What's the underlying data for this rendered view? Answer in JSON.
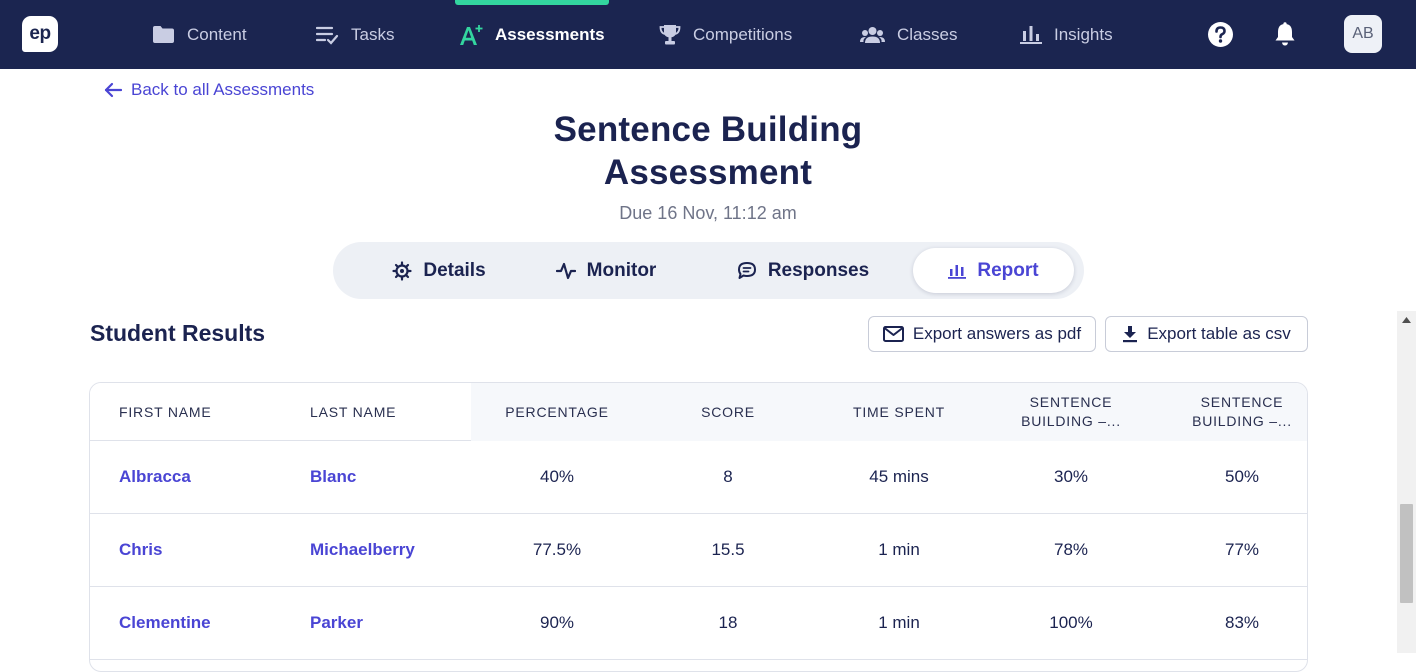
{
  "nav": {
    "logo": "ep",
    "items": [
      {
        "label": "Content",
        "icon": "folder-icon"
      },
      {
        "label": "Tasks",
        "icon": "checklist-icon"
      },
      {
        "label": "Assessments",
        "icon": "a-plus-icon"
      },
      {
        "label": "Competitions",
        "icon": "trophy-icon"
      },
      {
        "label": "Classes",
        "icon": "users-icon"
      },
      {
        "label": "Insights",
        "icon": "bar-chart-icon"
      }
    ],
    "active_item": "Assessments",
    "avatar": "AB",
    "accent_color": "#33d69f",
    "background_color": "#1b2550"
  },
  "back_link": "Back to all Assessments",
  "title_line1": "Sentence Building",
  "title_line2": "Assessment",
  "due": "Due 16 Nov, 11:12 am",
  "tabs": [
    {
      "label": "Details",
      "icon": "gear-icon"
    },
    {
      "label": "Monitor",
      "icon": "pulse-icon"
    },
    {
      "label": "Responses",
      "icon": "chat-icon"
    },
    {
      "label": "Report",
      "icon": "bar-chart-icon"
    }
  ],
  "active_tab": "Report",
  "results": {
    "title": "Student Results",
    "export_pdf": "Export answers as pdf",
    "export_csv": "Export table as csv",
    "columns": [
      "FIRST NAME",
      "LAST NAME",
      "PERCENTAGE",
      "SCORE",
      "TIME SPENT",
      "SENTENCE BUILDING –...",
      "SENTENCE BUILDING –..."
    ],
    "rows": [
      [
        "Albracca",
        "Blanc",
        "40%",
        "8",
        "45 mins",
        "30%",
        "50%"
      ],
      [
        "Chris",
        "Michaelberry",
        "77.5%",
        "15.5",
        "1 min",
        "78%",
        "77%"
      ],
      [
        "Clementine",
        "Parker",
        "90%",
        "18",
        "1 min",
        "100%",
        "83%"
      ]
    ]
  },
  "link_color": "#4a45d4"
}
